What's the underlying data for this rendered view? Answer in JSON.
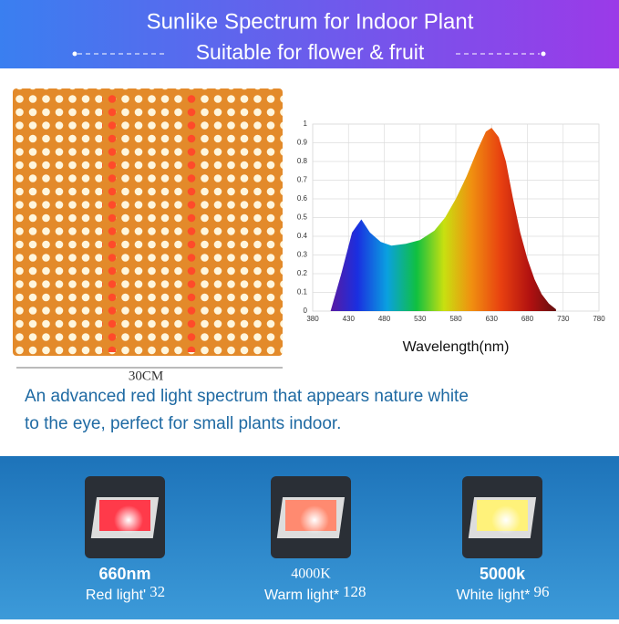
{
  "header": {
    "title": "Sunlike Spectrum for Indoor Plant",
    "subtitle": "Suitable for flower & fruit"
  },
  "panel": {
    "size": "30CM"
  },
  "description": [
    "An advanced red light spectrum that appears nature white",
    "to the eye,  perfect for small plants indoor."
  ],
  "chart_data": {
    "type": "area",
    "xlabel": "Wavelength(nm)",
    "x": [
      405,
      420,
      435,
      448,
      460,
      475,
      490,
      510,
      530,
      550,
      565,
      580,
      595,
      610,
      622,
      630,
      640,
      650,
      660,
      670,
      680,
      690,
      700,
      710,
      720
    ],
    "values": [
      0,
      0.2,
      0.42,
      0.49,
      0.42,
      0.37,
      0.35,
      0.36,
      0.38,
      0.43,
      0.5,
      0.6,
      0.72,
      0.86,
      0.96,
      0.98,
      0.93,
      0.8,
      0.6,
      0.42,
      0.28,
      0.17,
      0.09,
      0.04,
      0.01
    ],
    "xlim": [
      380,
      780
    ],
    "xticks": [
      380,
      430,
      480,
      530,
      580,
      630,
      680,
      730,
      780
    ],
    "ylim": [
      0,
      1
    ],
    "yticks": [
      0,
      0.1,
      0.2,
      0.3,
      0.4,
      0.5,
      0.6,
      0.7,
      0.8,
      0.9,
      1
    ],
    "grid": true
  },
  "leds": [
    {
      "title": "660nm",
      "label": "Red light'",
      "count": "32"
    },
    {
      "title": "4000K",
      "label": "Warm light*",
      "count": "128"
    },
    {
      "title": "5000k",
      "label": "White light*",
      "count": "96"
    }
  ]
}
